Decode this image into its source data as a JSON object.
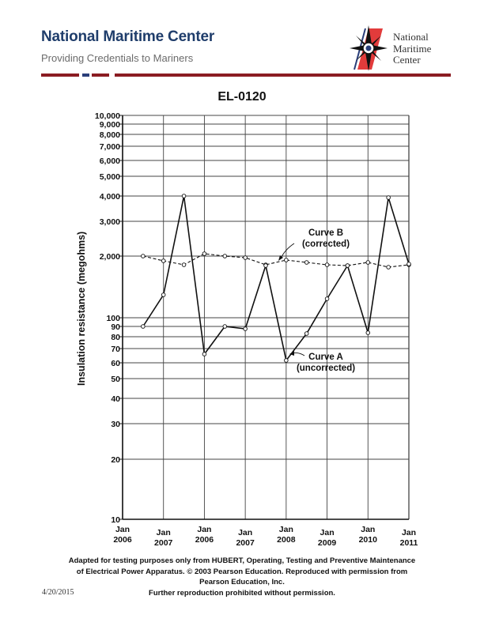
{
  "header": {
    "title": "National Maritime Center",
    "subtitle": "Providing Credentials to Mariners",
    "logo_text": [
      "National",
      "Maritime",
      "Center"
    ],
    "brand_color": "#1f3d6b",
    "rule_color": "#8b1c22"
  },
  "chart_title": "EL-0120",
  "chart_data": {
    "type": "line",
    "title": "EL-0120",
    "xlabel": "",
    "ylabel": "Insulation resistance (megohms)",
    "yscale": "log",
    "ylim": [
      10,
      10000
    ],
    "grid": true,
    "y_ticks": [
      "10",
      "20",
      "30",
      "40",
      "50",
      "60",
      "70",
      "80",
      "90",
      "100",
      "2,000",
      "3,000",
      "4,000",
      "5,000",
      "6,000",
      "7,000",
      "8,000",
      "9,000",
      "10,000"
    ],
    "x_tick_labels": [
      {
        "month": "Jan",
        "year": "2006"
      },
      {
        "month": "Jan",
        "year": "2007"
      },
      {
        "month": "Jan",
        "year": "2006"
      },
      {
        "month": "Jan",
        "year": "2007"
      },
      {
        "month": "Jan",
        "year": "2008"
      },
      {
        "month": "Jan",
        "year": "2009"
      },
      {
        "month": "Jan",
        "year": "2010"
      },
      {
        "month": "Jan",
        "year": "2011"
      }
    ],
    "x": [
      0.5,
      1,
      1.5,
      2,
      2.5,
      3,
      3.5,
      4,
      4.5,
      5,
      5.5,
      6,
      6.5,
      7
    ],
    "series": [
      {
        "name": "Curve A (uncorrected)",
        "style": "solid",
        "values": [
          90,
          150,
          4000,
          65,
          90,
          88,
          1800,
          62,
          83,
          130,
          1800,
          85,
          3900,
          1800
        ]
      },
      {
        "name": "Curve B (corrected)",
        "style": "dashed",
        "values": [
          2000,
          1900,
          1800,
          2050,
          2000,
          1950,
          1800,
          1900,
          1850,
          1800,
          1800,
          1850,
          1750,
          1800
        ]
      }
    ],
    "annotations": [
      {
        "text": [
          "Curve B",
          "(corrected)"
        ],
        "points_to": "Curve B"
      },
      {
        "text": [
          "Curve A",
          "(uncorrected)"
        ],
        "points_to": "Curve A"
      }
    ]
  },
  "plot_pixels": {
    "curveA_y": [
      413,
      373,
      248,
      448,
      413,
      416,
      336,
      456,
      422,
      378,
      336,
      421,
      250,
      334
    ],
    "curveB_y": [
      324,
      330,
      335,
      321,
      324,
      326,
      335,
      329,
      332,
      335,
      336,
      332,
      338,
      335
    ]
  },
  "footer": {
    "lines": [
      "Adapted for testing purposes only from HUBERT, Operating, Testing and Preventive Maintenance",
      "of Electrical Power Apparatus. © 2003 Pearson Education. Reproduced with permission from",
      "Pearson Education, Inc.",
      "Further reproduction prohibited without permission."
    ],
    "date": "4/20/2015"
  }
}
